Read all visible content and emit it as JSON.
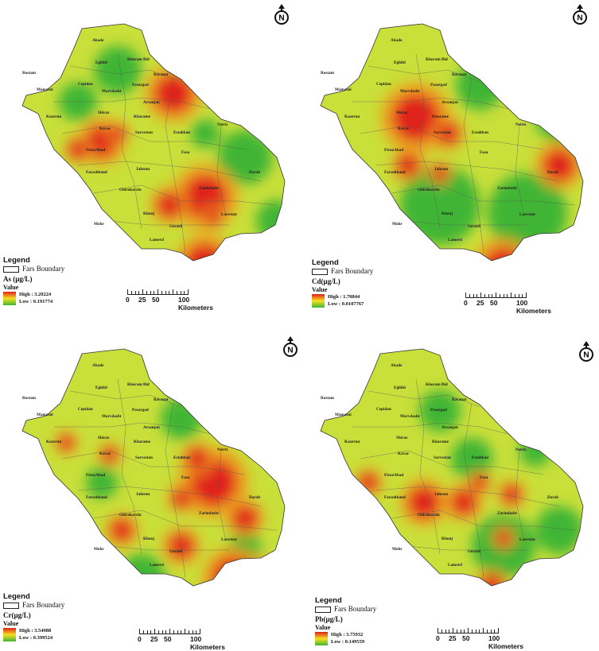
{
  "panels": [
    {
      "id": "as",
      "legend_title": "Legend",
      "boundary_label": "Fars Boundary",
      "unit_label": "As (µg/L)",
      "value_label": "Value",
      "high_label": "High : 3.20224",
      "low_label": "Low : 0.191774",
      "north_label": "N"
    },
    {
      "id": "cd",
      "legend_title": "Legend",
      "boundary_label": "Fars Boundary",
      "unit_label": "Cd(µg/L)",
      "value_label": "Value",
      "high_label": "High : 1.70844",
      "low_label": "Low : 0.0107767",
      "north_label": "N"
    },
    {
      "id": "cr",
      "legend_title": "Legend",
      "boundary_label": "Fars Boundary",
      "unit_label": "Cr(µg/L)",
      "value_label": "Value",
      "high_label": "High : 3.54988",
      "low_label": "Low : 0.399524",
      "north_label": "N"
    },
    {
      "id": "pb",
      "legend_title": "Legend",
      "boundary_label": "Fars Boundary",
      "unit_label": "Pb(µg/L)",
      "value_label": "Value",
      "high_label": "High : 3.75932",
      "low_label": "Low : 0.149559",
      "north_label": "N"
    }
  ],
  "scale": {
    "labels": [
      "0",
      "25",
      "50",
      "100 Kilometers"
    ]
  },
  "cities": [
    "Abade",
    "Eghlid",
    "Khoram Bid",
    "Bavanat",
    "Rostam",
    "Mamasni",
    "Cepidan",
    "Pasargad",
    "Marvdasht",
    "Arsanjan",
    "Kazerun",
    "Shiraz",
    "Kharame",
    "Neiriz",
    "Kavar",
    "Sarvestan",
    "Estahban",
    "FiruzAbad",
    "Fasa",
    "Jahrom",
    "Darab",
    "Farashband",
    "Ghirokarzin",
    "Zarindasht",
    "Khonj",
    "Larestan",
    "Mohr",
    "Gerash",
    "Lamerd"
  ],
  "colors": {
    "high": "#e0201a",
    "mid": "#f6e020",
    "low": "#3fb534"
  }
}
